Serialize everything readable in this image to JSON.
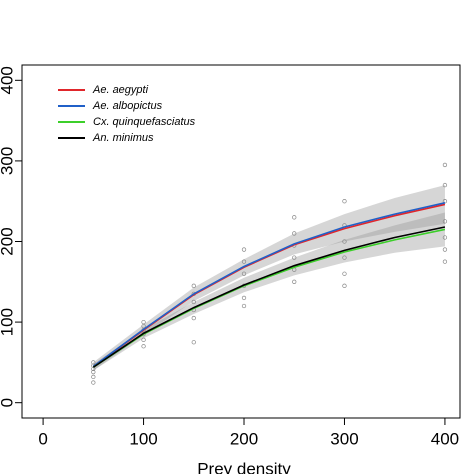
{
  "chart_data": {
    "type": "line",
    "x_label": "Prey density",
    "x": [
      50,
      100,
      150,
      200,
      250,
      300,
      350,
      400
    ],
    "series": [
      {
        "name": "Ae. aegypti",
        "color": "#e0262b",
        "values": [
          45,
          90,
          134,
          168,
          196,
          216,
          232,
          246
        ]
      },
      {
        "name": "Ae. albopictus",
        "color": "#2060c8",
        "values": [
          45,
          91,
          135,
          169,
          197,
          218,
          234,
          248
        ]
      },
      {
        "name": "Cx. quinquefasciatus",
        "color": "#3ccf2a",
        "values": [
          44,
          85,
          117,
          145,
          168,
          187,
          202,
          215
        ]
      },
      {
        "name": "An. minimus",
        "color": "#000000",
        "values": [
          44,
          86,
          118,
          146,
          170,
          189,
          205,
          218
        ]
      }
    ],
    "bands": [
      {
        "lower": [
          40,
          84,
          126,
          158,
          184,
          200,
          212,
          222
        ],
        "upper": [
          50,
          97,
          143,
          178,
          210,
          234,
          254,
          270
        ]
      },
      {
        "lower": [
          40,
          80,
          110,
          137,
          158,
          174,
          186,
          194
        ],
        "upper": [
          48,
          91,
          125,
          155,
          180,
          202,
          220,
          236
        ]
      }
    ],
    "points": {
      "color": "#888888",
      "x": [
        50,
        50,
        50,
        50,
        50,
        50,
        100,
        100,
        100,
        100,
        100,
        100,
        150,
        150,
        150,
        150,
        150,
        150,
        200,
        200,
        200,
        200,
        200,
        200,
        250,
        250,
        250,
        250,
        250,
        250,
        300,
        300,
        300,
        300,
        300,
        300,
        400,
        400,
        400,
        400,
        400,
        400,
        400
      ],
      "y": [
        25,
        32,
        38,
        42,
        46,
        50,
        70,
        78,
        85,
        90,
        95,
        100,
        75,
        105,
        115,
        125,
        135,
        145,
        120,
        130,
        145,
        160,
        175,
        190,
        150,
        165,
        180,
        195,
        210,
        230,
        145,
        160,
        180,
        200,
        220,
        250,
        175,
        190,
        205,
        225,
        250,
        270,
        295
      ]
    },
    "xlim": [
      -21,
      415
    ],
    "ylim": [
      -19,
      419
    ],
    "xticks": [
      0,
      100,
      200,
      300,
      400
    ],
    "yticks": [
      0,
      100,
      200,
      300,
      400
    ],
    "legend": "top-left"
  }
}
